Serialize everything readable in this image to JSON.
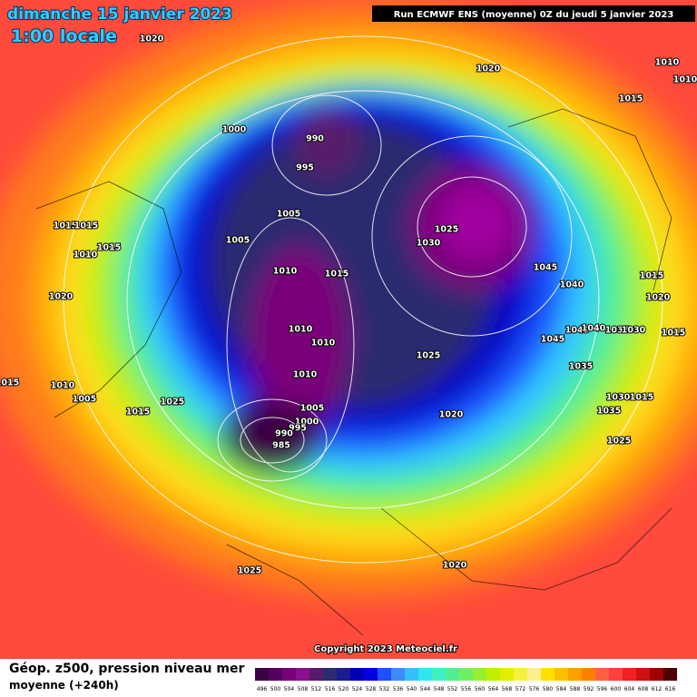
{
  "header": {
    "title": "dimanche 15 janvier 2023",
    "time": "1:00 locale",
    "run": "Run ECMWF ENS (moyenne) 0Z du jeudi 5 janvier 2023"
  },
  "map": {
    "isobars": [
      1020,
      1020,
      1010,
      1010,
      1015,
      1000,
      990,
      995,
      1005,
      1005,
      1015,
      1015,
      1010,
      1015,
      1025,
      1030,
      1010,
      1015,
      1045,
      1040,
      1015,
      1020,
      1020,
      1010,
      1010,
      1045,
      1040,
      1035,
      1030,
      1045,
      1015,
      1025,
      1035,
      1010,
      1015,
      1010,
      1005,
      1025,
      1030,
      1015,
      1015,
      1005,
      1020,
      1035,
      1000,
      995,
      990,
      985,
      1025,
      1025,
      1020
    ],
    "copyright": "Copyright 2023 Meteociel.fr"
  },
  "footer": {
    "caption": "Géop. z500, pression niveau mer",
    "subcaption": "moyenne  (+240h)"
  },
  "legend": {
    "ticks": [
      496,
      500,
      504,
      508,
      512,
      516,
      520,
      524,
      528,
      532,
      536,
      540,
      544,
      548,
      552,
      556,
      560,
      564,
      568,
      572,
      576,
      580,
      584,
      588,
      592,
      596,
      600,
      604,
      608,
      612,
      616
    ],
    "colors": [
      "#3c0044",
      "#55005e",
      "#7a007a",
      "#8a1090",
      "#5a1a6a",
      "#2b2b70",
      "#1c1c90",
      "#0000b4",
      "#0000e0",
      "#1e50ff",
      "#3c8cff",
      "#32c0ff",
      "#30e6f0",
      "#40f0c0",
      "#50f090",
      "#70f060",
      "#96f030",
      "#bef000",
      "#e0f000",
      "#f8f040",
      "#fff08c",
      "#ffe000",
      "#ffc000",
      "#ffa000",
      "#ff8000",
      "#ff6040",
      "#ff4040",
      "#f02020",
      "#d01010",
      "#a00000",
      "#500000"
    ]
  }
}
